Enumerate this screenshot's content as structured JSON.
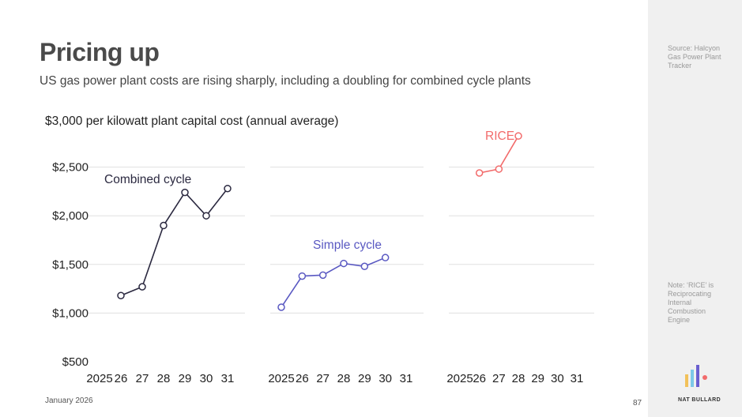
{
  "header": {
    "title": "Pricing up",
    "subtitle": "US gas power plant costs are rising sharply, including a doubling for combined cycle plants"
  },
  "sidebar": {
    "source": "Source: Halcyon Gas Power Plant Tracker",
    "note": "Note: ‘RICE’ is Reciprocating Internal Combustion Engine",
    "brand": "NAT BULLARD"
  },
  "footer": {
    "date": "January 2026",
    "page": "87"
  },
  "chart_data": {
    "type": "line",
    "title": "$3,000 per kilowatt plant capital cost (annual average)",
    "xlabel": "",
    "ylabel": "",
    "ylim": [
      500,
      3000
    ],
    "yticks": [
      "$500",
      "$1,000",
      "$1,500",
      "$2,000",
      "$2,500"
    ],
    "x": [
      2025,
      2026,
      2027,
      2028,
      2029,
      2030,
      2031
    ],
    "xtick_labels": [
      "2025",
      "26",
      "27",
      "28",
      "29",
      "30",
      "31"
    ],
    "grid": true,
    "series": [
      {
        "name": "Combined cycle",
        "color": "#2b2940",
        "x": [
          2026,
          2027,
          2028,
          2029,
          2030,
          2031
        ],
        "values": [
          1180,
          1270,
          1900,
          2240,
          2000,
          2280
        ]
      },
      {
        "name": "Simple cycle",
        "color": "#5a59c2",
        "x": [
          2025,
          2026,
          2027,
          2028,
          2029,
          2030
        ],
        "values": [
          1060,
          1380,
          1390,
          1510,
          1480,
          1570
        ]
      },
      {
        "name": "RICE",
        "color": "#f26b6b",
        "x": [
          2026,
          2027,
          2028
        ],
        "values": [
          2440,
          2480,
          2820
        ]
      }
    ]
  }
}
